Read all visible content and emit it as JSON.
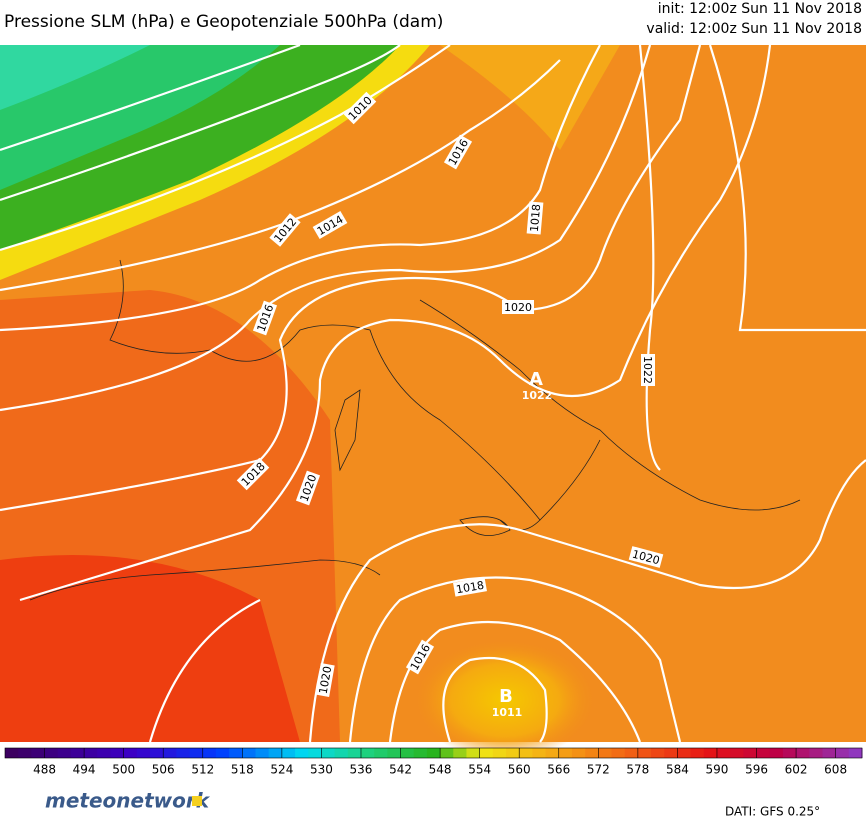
{
  "header": {
    "title": "Pressione SLM (hPa) e Geopotenziale 500hPa (dam)",
    "init": "init: 12:00z Sun 11 Nov 2018",
    "valid": "valid: 12:00z Sun 11 Nov 2018"
  },
  "map": {
    "isobar_labels": [
      "1010",
      "1016",
      "1018",
      "1012",
      "1014",
      "1020",
      "1016",
      "1022",
      "1018",
      "1020",
      "1020",
      "1018",
      "1016",
      "1020"
    ],
    "high": {
      "symbol": "A",
      "value": "1022"
    },
    "low": {
      "symbol": "B",
      "value": "1011"
    }
  },
  "colorbar": {
    "range": [
      482,
      612
    ],
    "ticks": [
      488,
      494,
      500,
      506,
      512,
      518,
      524,
      530,
      536,
      542,
      548,
      554,
      560,
      566,
      572,
      578,
      584,
      590,
      596,
      602,
      608
    ]
  },
  "footer": {
    "logo": "meteonetwork",
    "credit": "DATI: GFS 0.25°"
  }
}
